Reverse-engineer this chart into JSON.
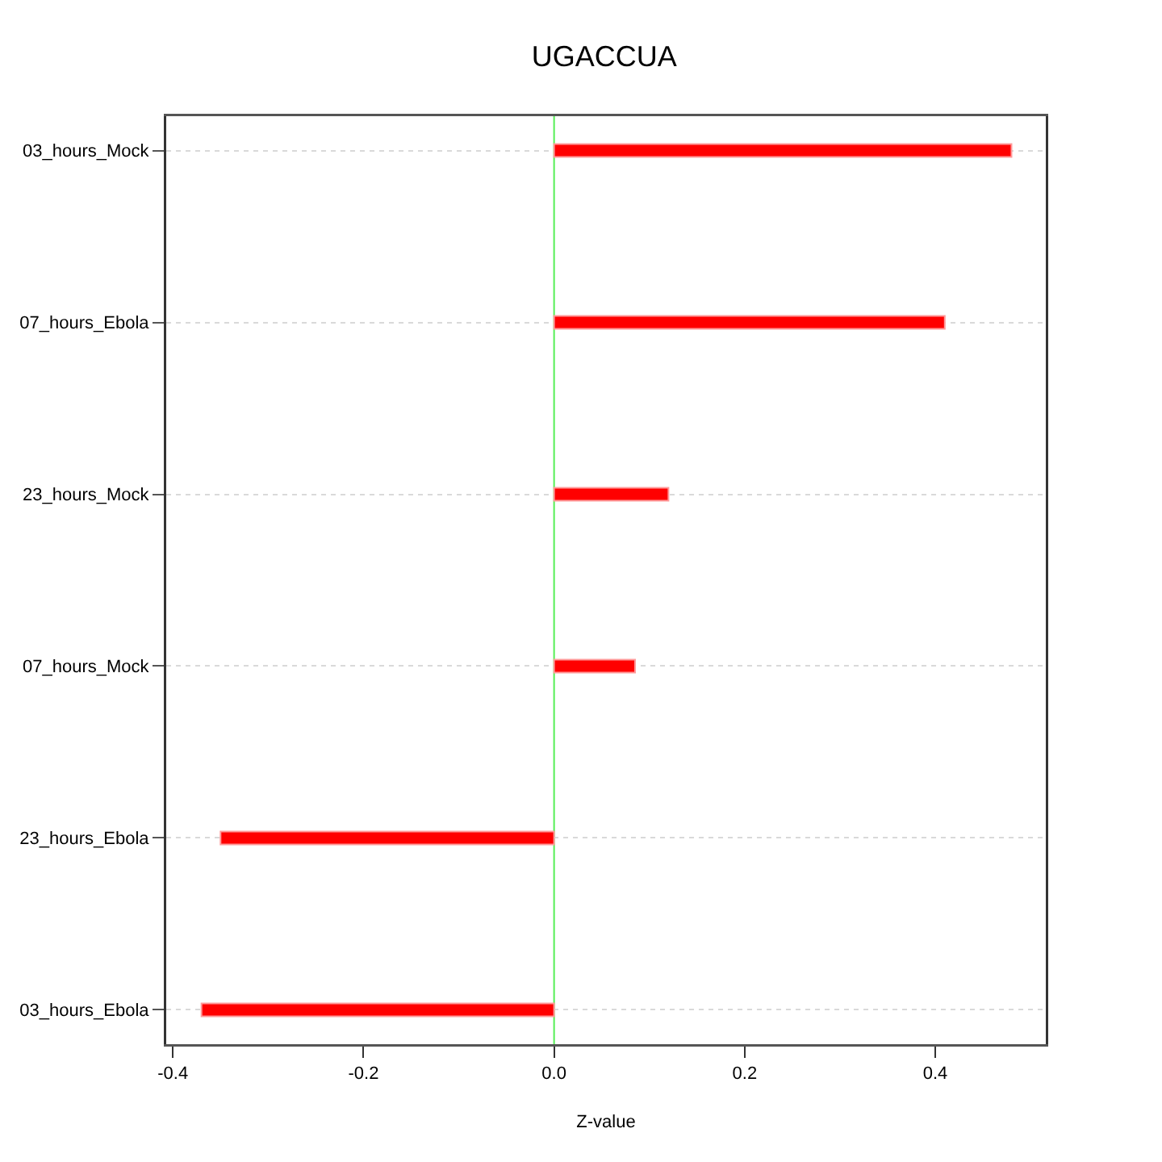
{
  "chart_data": {
    "type": "bar",
    "orientation": "horizontal",
    "title": "UGACCUA",
    "xlabel": "Z-value",
    "categories": [
      "03_hours_Mock",
      "07_hours_Ebola",
      "23_hours_Mock",
      "07_hours_Mock",
      "23_hours_Ebola",
      "03_hours_Ebola"
    ],
    "values": [
      0.48,
      0.41,
      0.12,
      0.085,
      -0.35,
      -0.37
    ],
    "color": "#ff0000",
    "xlim": [
      -0.407,
      0.516
    ],
    "xticks": [
      -0.4,
      -0.2,
      {
        "value": 0,
        "label": "0.0"
      },
      0.2,
      0.4
    ],
    "grid": "y",
    "ref_lines": [
      {
        "axis": "x",
        "value": 0,
        "color": "#55ee55"
      }
    ]
  }
}
